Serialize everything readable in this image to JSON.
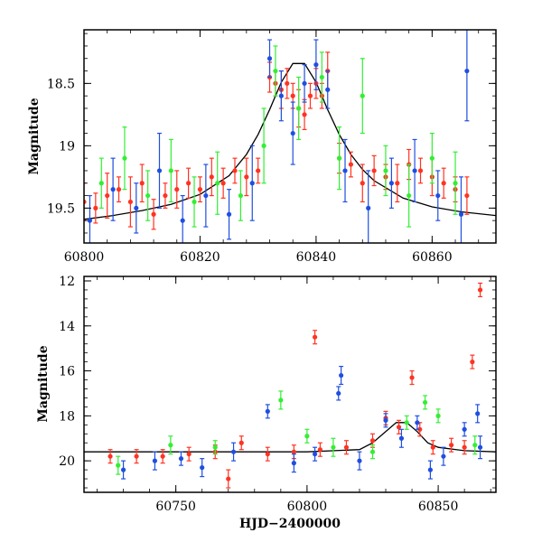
{
  "chart_data": [
    {
      "type": "scatter",
      "panel": "top",
      "title": "",
      "xlabel": "",
      "ylabel": "Magnitude",
      "xlim": [
        60800,
        60871
      ],
      "ylim": [
        19.78,
        18.07
      ],
      "y_inverted": true,
      "xticks": [
        60800,
        60820,
        60840,
        60860
      ],
      "xtick_labels": [
        "60800",
        "60820",
        "60840",
        "60860"
      ],
      "yticks": [
        18.5,
        19,
        19.5
      ],
      "ytick_labels": [
        "18.5",
        "19",
        "19.5"
      ],
      "grid": false,
      "legend": "none",
      "series": [
        {
          "color": "#ff3322",
          "x": [
            60800,
            60802,
            60804,
            60806,
            60808,
            60810,
            60812,
            60814,
            60816,
            60818,
            60820,
            60822,
            60824,
            60826,
            60828,
            60830,
            60832,
            60833,
            60834,
            60835,
            60836,
            60837,
            60838,
            60839,
            60840,
            60841,
            60842,
            60844,
            60846,
            60848,
            60850,
            60852,
            60854,
            60856,
            60858,
            60860,
            60862,
            60864,
            60866
          ],
          "y": [
            19.45,
            19.5,
            19.4,
            19.35,
            19.45,
            19.3,
            19.55,
            19.4,
            19.35,
            19.3,
            19.35,
            19.25,
            19.3,
            19.2,
            19.25,
            19.2,
            18.45,
            18.5,
            18.55,
            18.5,
            18.6,
            18.7,
            18.75,
            18.6,
            18.5,
            18.6,
            18.4,
            19.1,
            19.15,
            19.3,
            19.2,
            19.25,
            19.3,
            19.15,
            19.2,
            19.25,
            19.3,
            19.35,
            19.4
          ],
          "err": [
            0.15,
            0.12,
            0.18,
            0.1,
            0.2,
            0.15,
            0.12,
            0.1,
            0.15,
            0.12,
            0.1,
            0.15,
            0.12,
            0.1,
            0.15,
            0.1,
            0.12,
            0.1,
            0.15,
            0.12,
            0.1,
            0.15,
            0.12,
            0.1,
            0.12,
            0.1,
            0.15,
            0.12,
            0.1,
            0.15,
            0.12,
            0.1,
            0.15,
            0.12,
            0.1,
            0.15,
            0.12,
            0.1,
            0.15
          ]
        },
        {
          "color": "#1f4fe0",
          "x": [
            60801,
            60805,
            60809,
            60813,
            60817,
            60821,
            60825,
            60829,
            60832,
            60834,
            60836,
            60838,
            60840,
            60842,
            60845,
            60849,
            60853,
            60857,
            60861,
            60865,
            60866
          ],
          "y": [
            19.6,
            19.35,
            19.5,
            19.2,
            19.6,
            19.4,
            19.55,
            19.3,
            18.3,
            18.6,
            18.9,
            18.5,
            18.35,
            18.55,
            19.2,
            19.5,
            19.3,
            19.2,
            19.4,
            19.55,
            18.4
          ],
          "err": [
            0.2,
            0.25,
            0.2,
            0.3,
            0.2,
            0.25,
            0.2,
            0.3,
            0.15,
            0.2,
            0.25,
            0.15,
            0.2,
            0.15,
            0.25,
            0.3,
            0.2,
            0.25,
            0.2,
            0.3,
            0.4
          ]
        },
        {
          "color": "#33ee33",
          "x": [
            60803,
            60807,
            60811,
            60815,
            60819,
            60823,
            60827,
            60831,
            60833,
            60837,
            60841,
            60844,
            60848,
            60852,
            60856,
            60860,
            60864
          ],
          "y": [
            19.3,
            19.1,
            19.4,
            19.2,
            19.45,
            19.3,
            19.4,
            19.0,
            18.4,
            18.7,
            18.45,
            19.1,
            18.6,
            19.2,
            19.4,
            19.1,
            19.3
          ],
          "err": [
            0.2,
            0.25,
            0.2,
            0.25,
            0.2,
            0.25,
            0.2,
            0.3,
            0.2,
            0.25,
            0.2,
            0.25,
            0.3,
            0.2,
            0.25,
            0.2,
            0.25
          ]
        }
      ],
      "model_curve": {
        "color": "#000000",
        "x": [
          60800,
          60805,
          60810,
          60815,
          60820,
          60825,
          60828,
          60830,
          60832,
          60834,
          60836,
          60838,
          60840,
          60842,
          60844,
          60846,
          60848,
          60850,
          60855,
          60860,
          60865,
          60871
        ],
        "y": [
          19.59,
          19.56,
          19.52,
          19.47,
          19.39,
          19.24,
          19.07,
          18.91,
          18.71,
          18.49,
          18.34,
          18.34,
          18.49,
          18.71,
          18.91,
          19.07,
          19.19,
          19.28,
          19.42,
          19.49,
          19.53,
          19.56
        ]
      }
    },
    {
      "type": "scatter",
      "panel": "bottom",
      "title": "",
      "xlabel": "HJD−2400000",
      "ylabel": "Magnitude",
      "xlim": [
        60715,
        60872
      ],
      "ylim": [
        21.4,
        11.8
      ],
      "y_inverted": true,
      "xticks": [
        60750,
        60800,
        60850
      ],
      "xtick_labels": [
        "60750",
        "60800",
        "60850"
      ],
      "yticks": [
        12,
        14,
        16,
        18,
        20
      ],
      "ytick_labels": [
        "12",
        "14",
        "16",
        "18",
        "20"
      ],
      "grid": false,
      "legend": "none",
      "series": [
        {
          "color": "#ff3322",
          "x": [
            60725,
            60735,
            60745,
            60755,
            60765,
            60770,
            60775,
            60785,
            60795,
            60803,
            60805,
            60815,
            60825,
            60830,
            60835,
            60840,
            60843,
            60848,
            60855,
            60860,
            60863,
            60866
          ],
          "y": [
            19.8,
            19.8,
            19.8,
            19.7,
            19.6,
            20.8,
            19.2,
            19.7,
            19.6,
            14.5,
            19.5,
            19.4,
            19.1,
            18.1,
            18.5,
            16.3,
            18.6,
            19.4,
            19.3,
            19.4,
            15.6,
            12.4
          ],
          "err": [
            0.3,
            0.3,
            0.3,
            0.3,
            0.3,
            0.4,
            0.3,
            0.3,
            0.3,
            0.3,
            0.3,
            0.3,
            0.3,
            0.3,
            0.3,
            0.3,
            0.3,
            0.3,
            0.3,
            0.3,
            0.3,
            0.3
          ]
        },
        {
          "color": "#1f4fe0",
          "x": [
            60730,
            60742,
            60752,
            60760,
            60772,
            60785,
            60795,
            60803,
            60812,
            60813,
            60820,
            60830,
            60836,
            60842,
            60847,
            60852,
            60860,
            60865,
            60866
          ],
          "y": [
            20.4,
            20.0,
            19.9,
            20.3,
            19.6,
            17.8,
            20.1,
            19.7,
            17.0,
            16.2,
            20.0,
            18.2,
            19.0,
            18.3,
            20.4,
            19.8,
            18.6,
            17.9,
            19.4
          ],
          "err": [
            0.4,
            0.4,
            0.3,
            0.4,
            0.4,
            0.3,
            0.4,
            0.3,
            0.3,
            0.4,
            0.4,
            0.3,
            0.4,
            0.3,
            0.4,
            0.4,
            0.3,
            0.4,
            0.5
          ]
        },
        {
          "color": "#33ee33",
          "x": [
            60728,
            60748,
            60765,
            60790,
            60800,
            60810,
            60825,
            60838,
            60845,
            60850,
            60864
          ],
          "y": [
            20.2,
            19.3,
            19.4,
            17.3,
            18.9,
            19.4,
            19.6,
            18.3,
            17.4,
            18.0,
            19.3
          ],
          "err": [
            0.4,
            0.4,
            0.3,
            0.4,
            0.3,
            0.4,
            0.3,
            0.3,
            0.3,
            0.3,
            0.4
          ]
        }
      ],
      "model_curve": {
        "color": "#000000",
        "x": [
          60715,
          60800,
          60820,
          60825,
          60830,
          60834,
          60838,
          60842,
          60846,
          60850,
          60860,
          60872
        ],
        "y": [
          19.6,
          19.6,
          19.5,
          19.2,
          18.7,
          18.3,
          18.3,
          18.7,
          19.2,
          19.4,
          19.55,
          19.6
        ]
      }
    }
  ]
}
